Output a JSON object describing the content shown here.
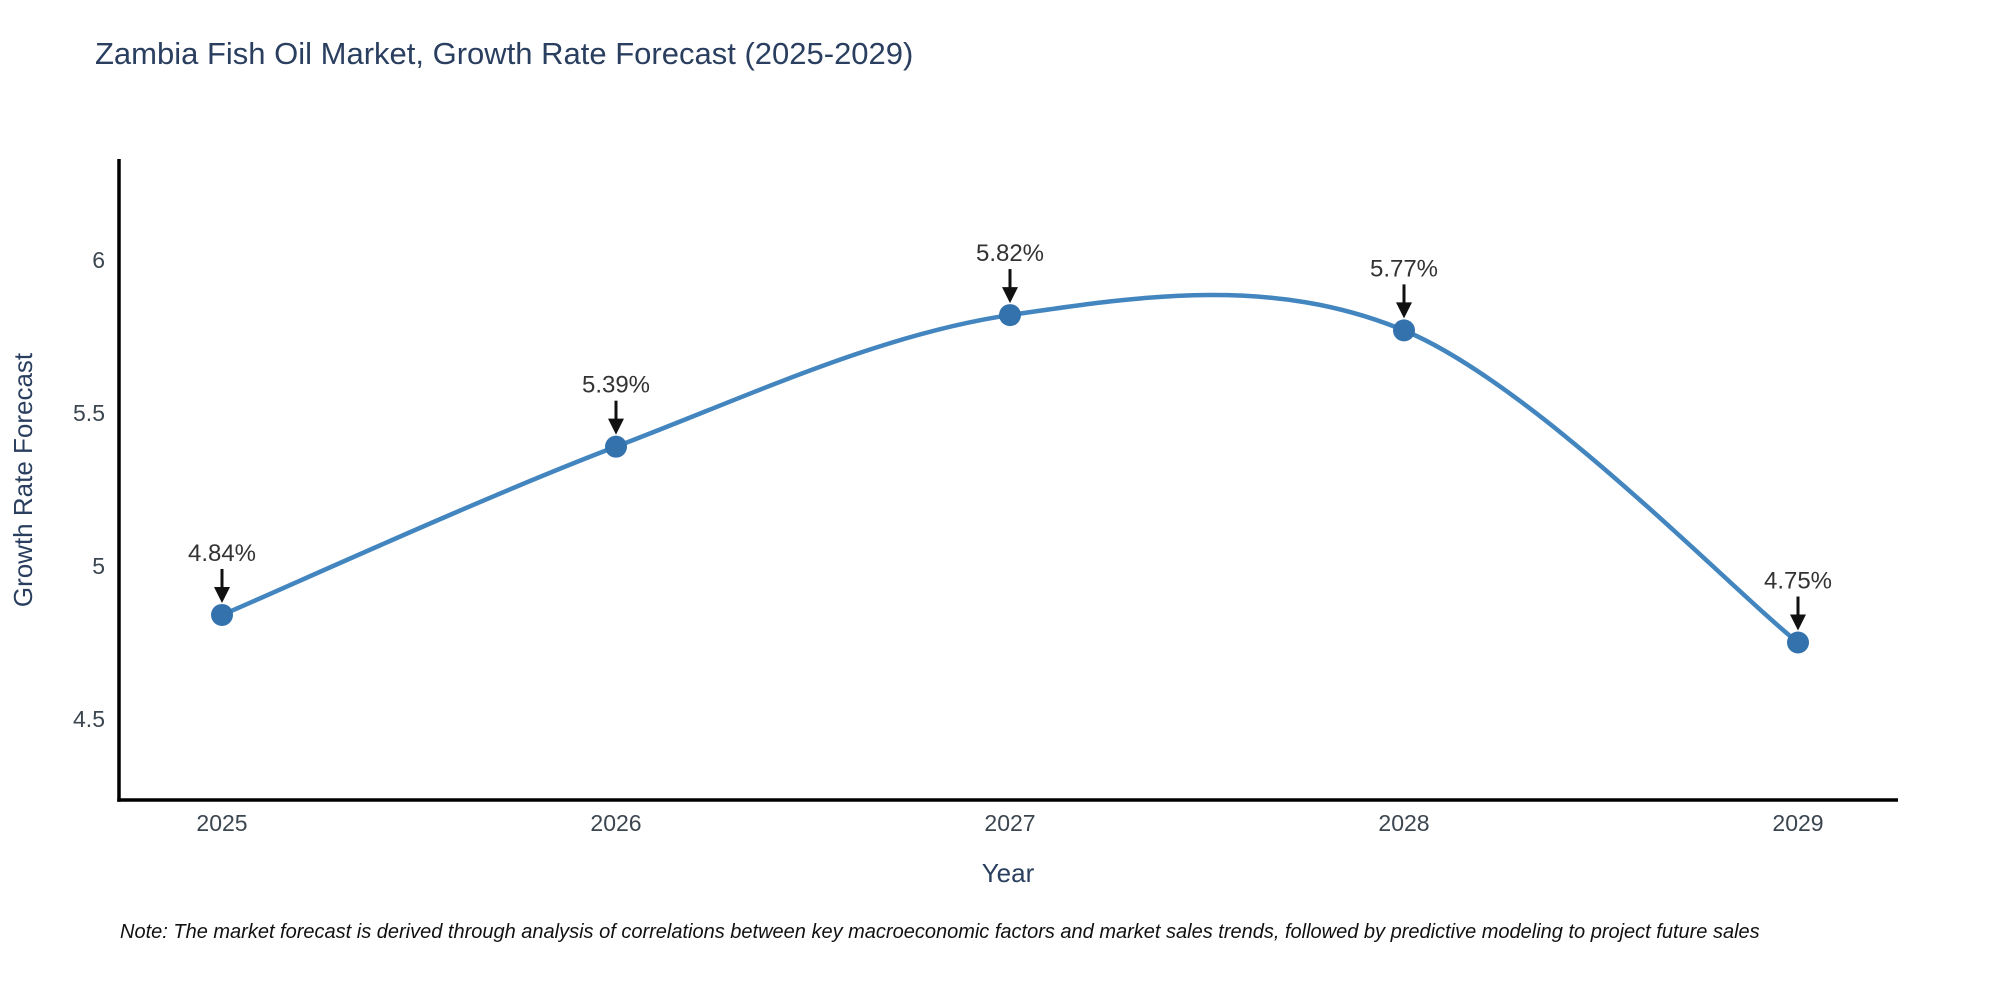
{
  "title": "Zambia Fish Oil Market, Growth Rate Forecast (2025-2029)",
  "note": "Note: The market forecast is derived through analysis of correlations between key macroeconomic factors and market sales trends, followed by predictive modeling to project future sales",
  "colors": {
    "title": "#2a3f5f",
    "axis_title": "#2a3f5f",
    "tick": "#3b4650",
    "spine": "#000000",
    "line": "#4285bf",
    "marker": "#3372ad",
    "annotation_text": "#333333",
    "arrow": "#111111",
    "note_text": "#111111",
    "background": "#ffffff"
  },
  "chart_data": {
    "type": "line",
    "title": "Zambia Fish Oil Market, Growth Rate Forecast (2025-2029)",
    "xlabel": "Year",
    "ylabel": "Growth Rate Forecast",
    "x": [
      2025,
      2026,
      2027,
      2028,
      2029
    ],
    "values": [
      4.84,
      5.39,
      5.82,
      5.77,
      4.75
    ],
    "point_labels": [
      "4.84%",
      "5.39%",
      "5.82%",
      "5.77%",
      "4.75%"
    ],
    "series_name": "Growth Rate Forecast",
    "yticks": [
      4.5,
      5,
      5.5,
      6
    ],
    "xticks": [
      2025,
      2026,
      2027,
      2028,
      2029
    ],
    "ylim": [
      4.23,
      6.33
    ],
    "xlim": [
      2024.74,
      2029.25
    ],
    "line_shape": "spline",
    "grid": false,
    "legend_position": "none"
  }
}
